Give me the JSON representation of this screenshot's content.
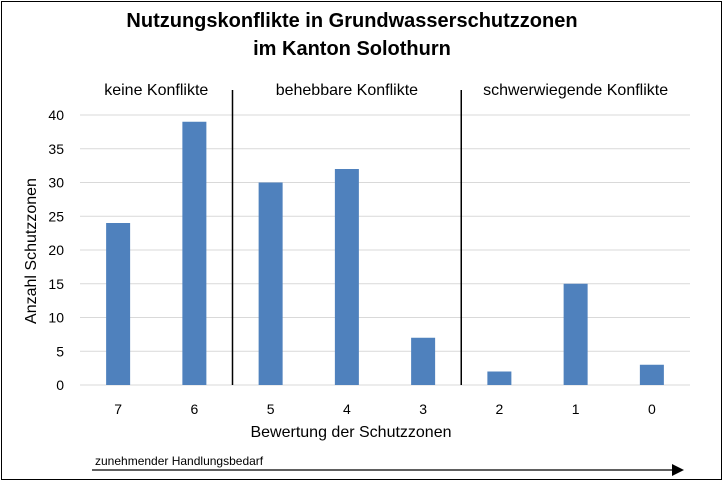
{
  "chart_data": {
    "type": "bar",
    "title": [
      "Nutzungskonflikte in Grundwasserschutzzonen",
      "im Kanton Solothurn"
    ],
    "xlabel": "Bewertung der Schutzzonen",
    "ylabel": "Anzahl Schutzzonen",
    "categories": [
      "7",
      "6",
      "5",
      "4",
      "3",
      "2",
      "1",
      "0"
    ],
    "values": [
      24,
      39,
      30,
      32,
      7,
      2,
      15,
      3
    ],
    "ylim": [
      0,
      40
    ],
    "yticks": [
      0,
      5,
      10,
      15,
      20,
      25,
      30,
      35,
      40
    ],
    "grid": true,
    "bar_color": "#4f81bd",
    "groups": [
      {
        "label": "keine Konflikte",
        "categories": [
          "7",
          "6"
        ]
      },
      {
        "label": "behebbare Konflikte",
        "categories": [
          "5",
          "4",
          "3"
        ]
      },
      {
        "label": "schwerwiegende Konflikte",
        "categories": [
          "2",
          "1",
          "0"
        ]
      }
    ],
    "footer": "zunehmender Handlungsbedarf"
  }
}
